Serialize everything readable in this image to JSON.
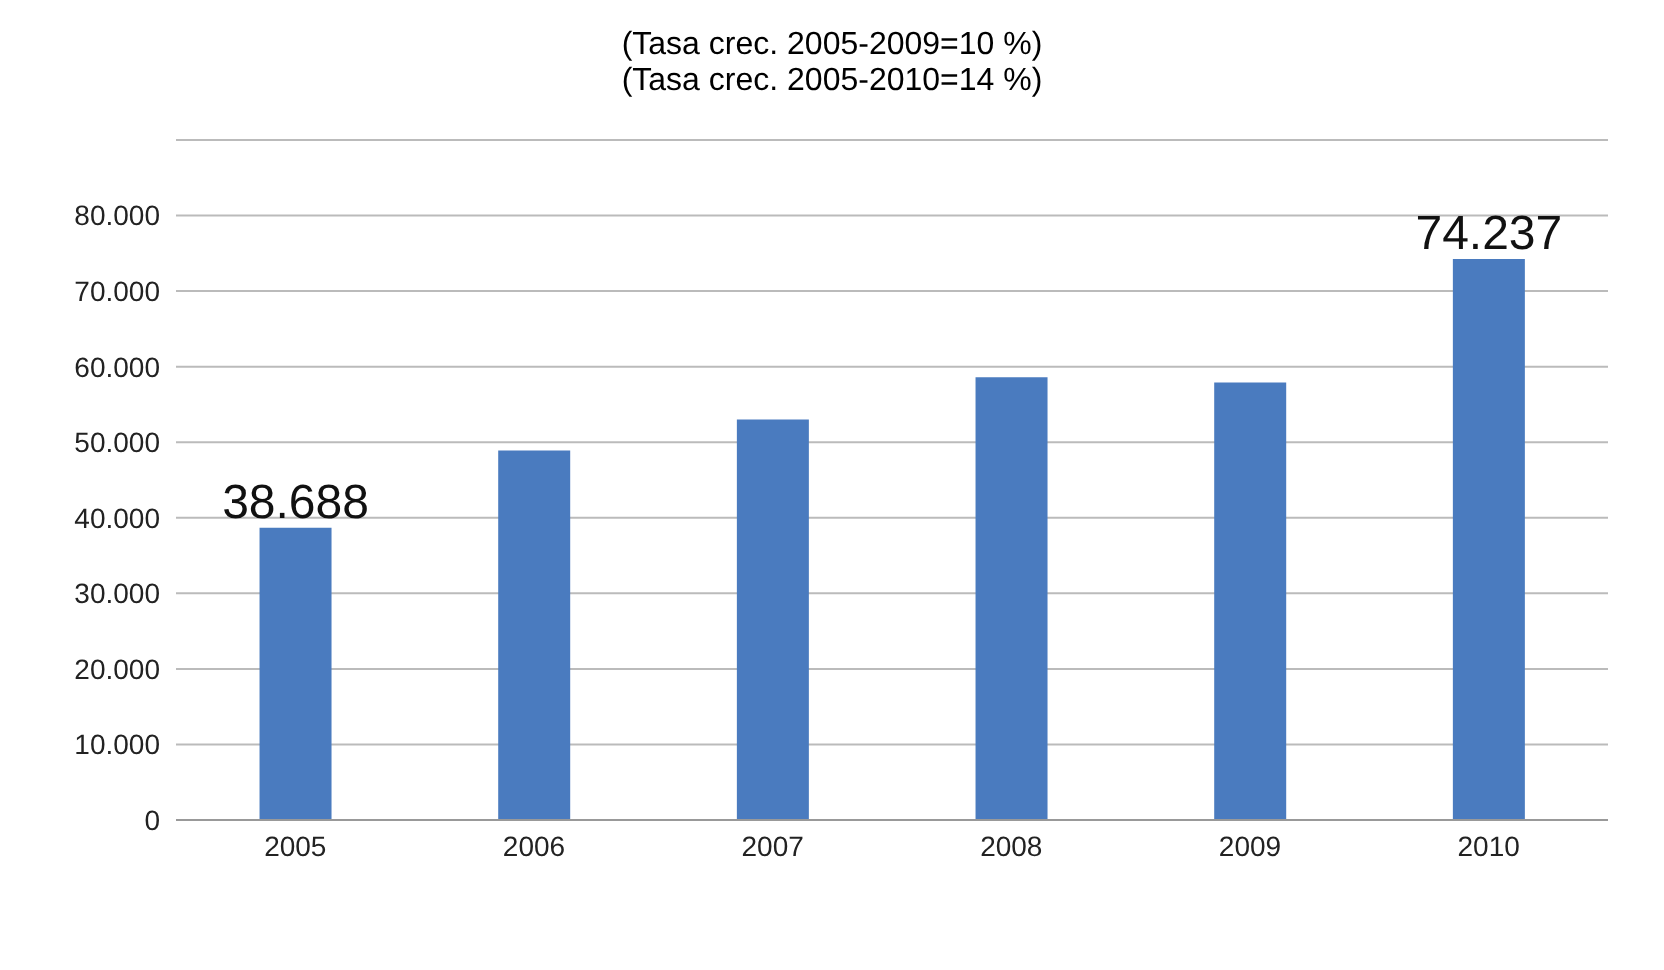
{
  "chart_data": {
    "type": "bar",
    "title": "(Tasa crec. 2005-2009=10 %)",
    "subtitle": "(Tasa crec. 2005-2010=14 %)",
    "categories": [
      "2005",
      "2006",
      "2007",
      "2008",
      "2009",
      "2010"
    ],
    "values": [
      38688,
      48900,
      53000,
      58600,
      57900,
      74237
    ],
    "value_labels": [
      "38.688",
      null,
      null,
      null,
      null,
      "74.237"
    ],
    "color": "#4a7bbf",
    "ylim": [
      0,
      90000
    ],
    "yticks": [
      {
        "value": 0,
        "label": "0"
      },
      {
        "value": 10000,
        "label": "10.000"
      },
      {
        "value": 20000,
        "label": "20.000"
      },
      {
        "value": 30000,
        "label": "30.000"
      },
      {
        "value": 40000,
        "label": "40.000"
      },
      {
        "value": 50000,
        "label": "50.000"
      },
      {
        "value": 60000,
        "label": "60.000"
      },
      {
        "value": 70000,
        "label": "70.000"
      },
      {
        "value": 80000,
        "label": "80.000"
      },
      {
        "value": 90000,
        "label": null
      }
    ],
    "grid": "y"
  }
}
